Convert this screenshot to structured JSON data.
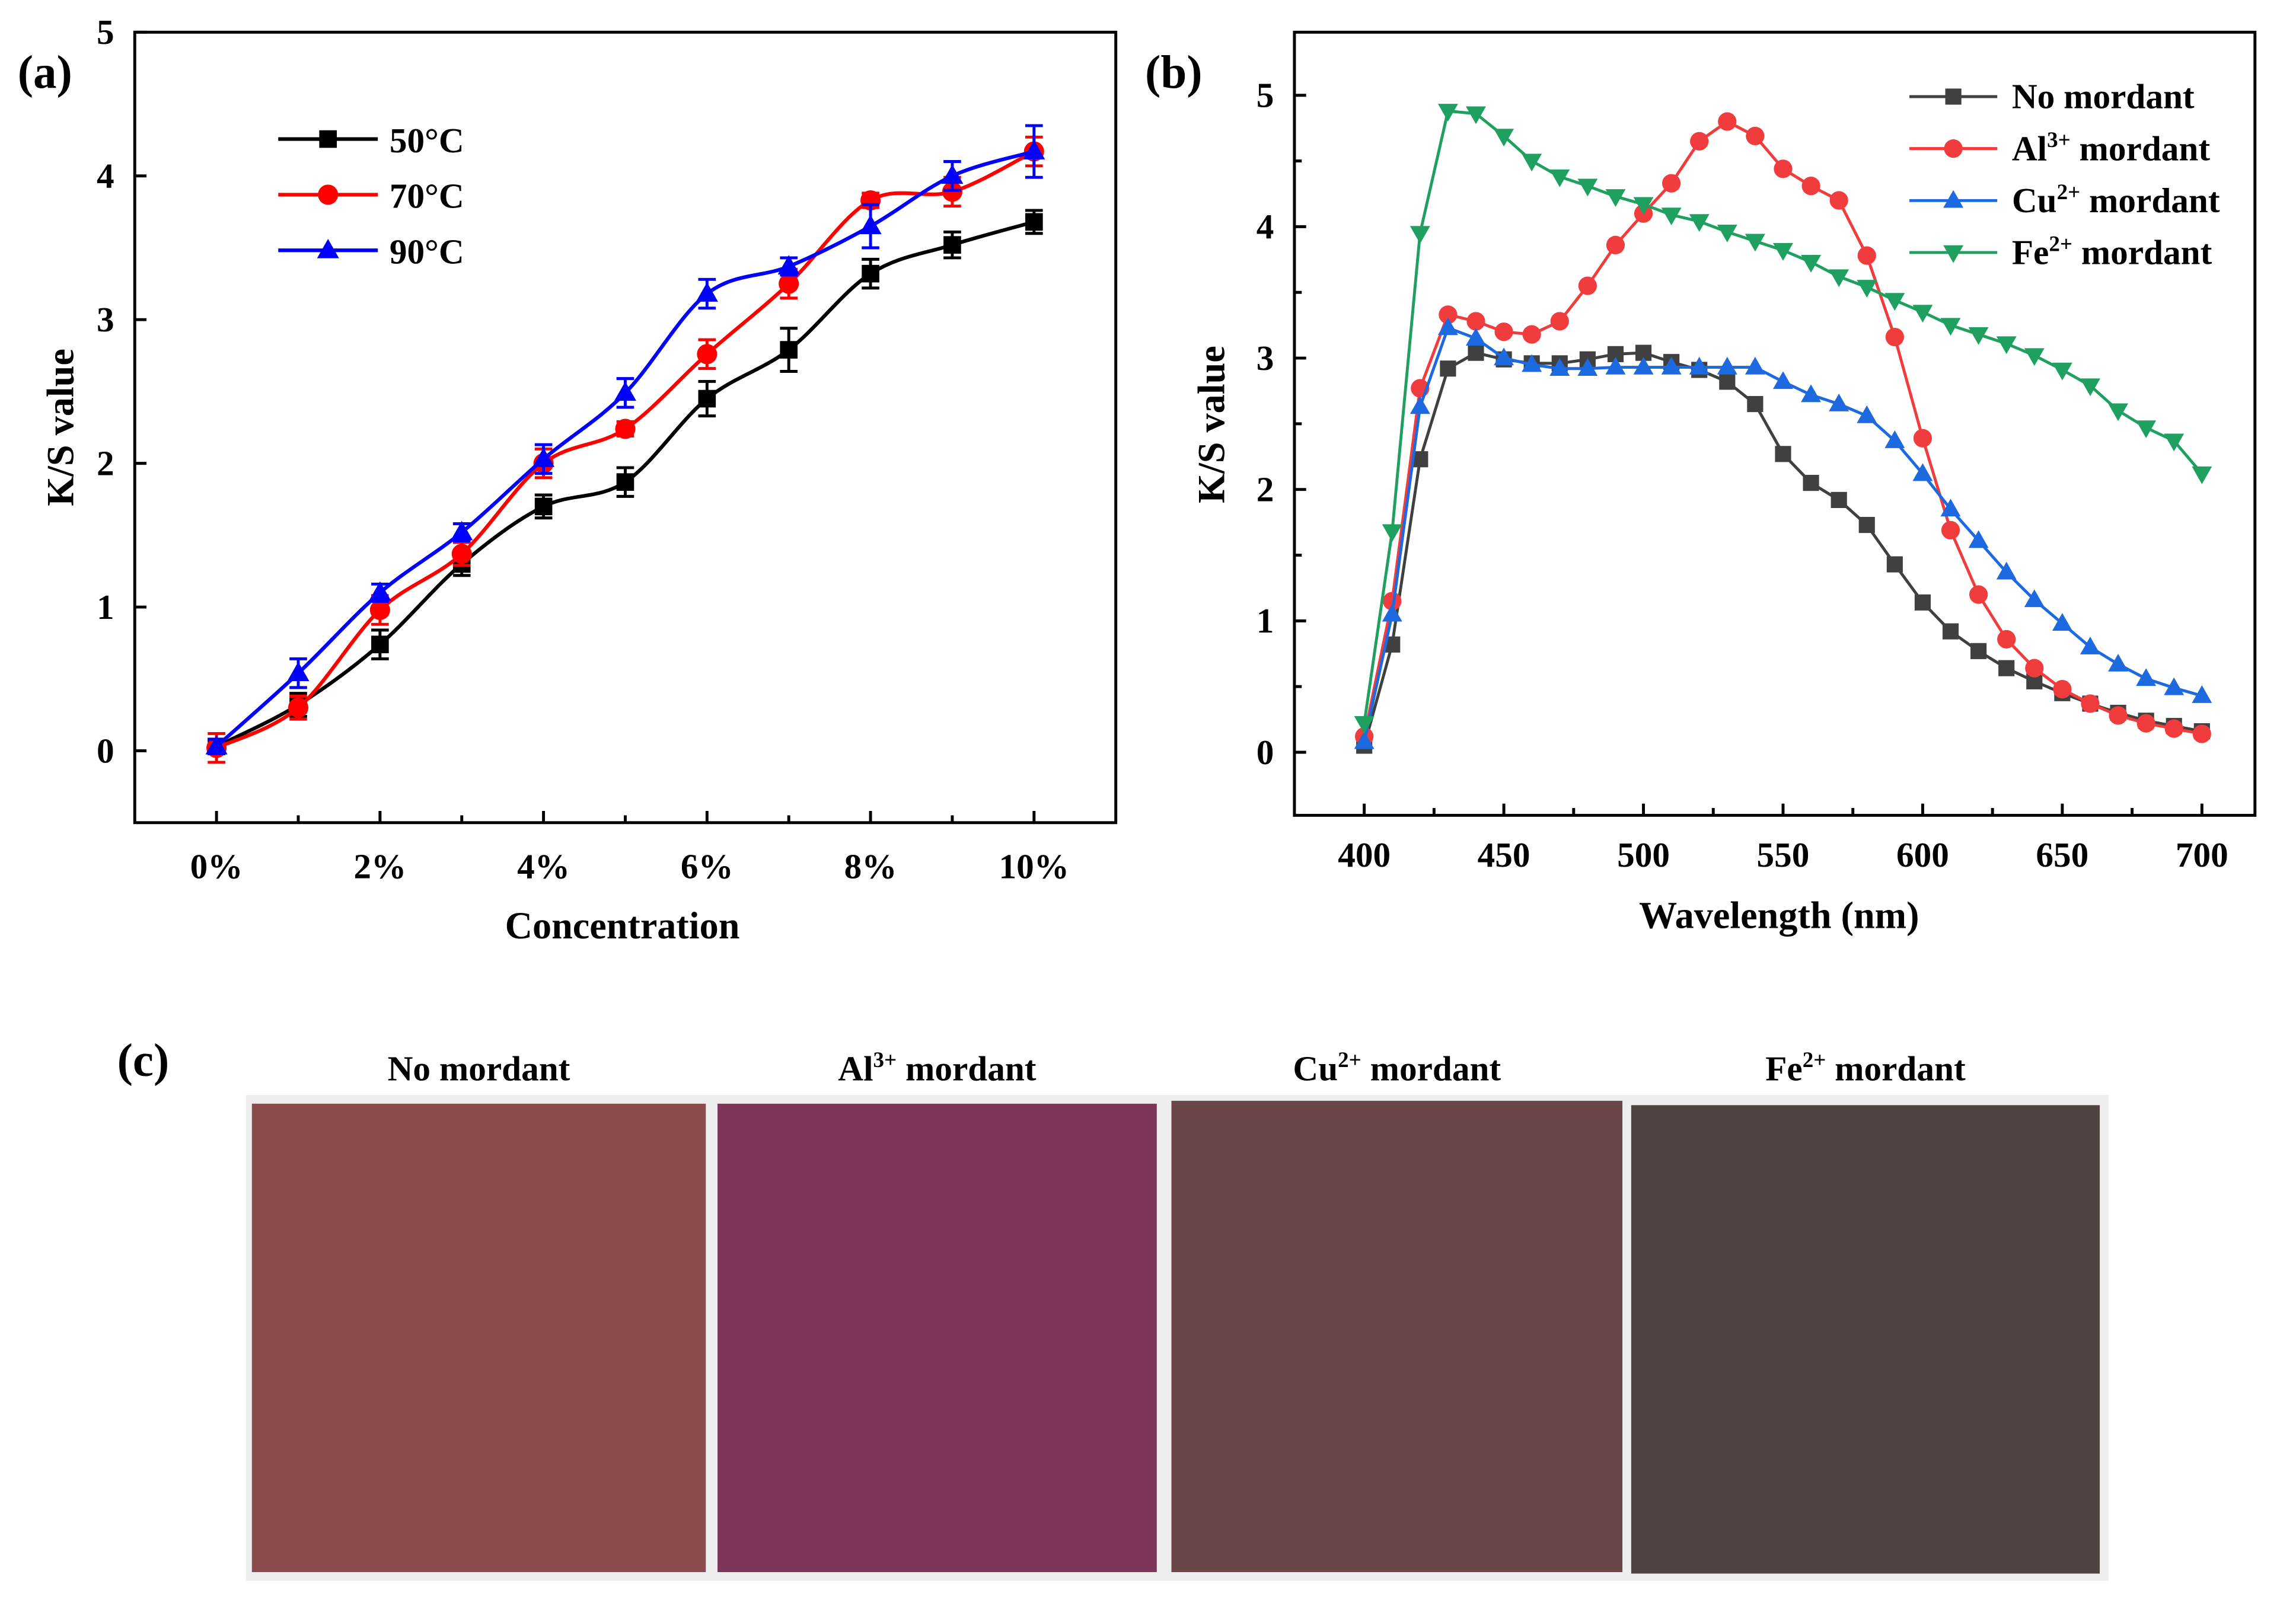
{
  "chart_data": [
    {
      "panel": "(a)",
      "type": "line",
      "xlabel": "Concentration",
      "ylabel": "K/S value",
      "categories": [
        "0%",
        "1%",
        "2%",
        "3%",
        "4%",
        "5%",
        "6%",
        "7%",
        "8%",
        "9%",
        "10%"
      ],
      "x_tick_labels": [
        "0%",
        "2%",
        "4%",
        "6%",
        "8%",
        "10%"
      ],
      "y_ticks": [
        0,
        1,
        2,
        3,
        4,
        5
      ],
      "ylim": [
        -0.5,
        5
      ],
      "legend_position": "top-left",
      "series": [
        {
          "name": "50°C",
          "color": "#000000",
          "marker": "square",
          "values": [
            0.03,
            0.32,
            0.74,
            1.3,
            1.7,
            1.87,
            2.45,
            2.79,
            3.32,
            3.52,
            3.68
          ],
          "error": [
            0.05,
            0.08,
            0.1,
            0.08,
            0.08,
            0.1,
            0.12,
            0.15,
            0.1,
            0.09,
            0.08
          ]
        },
        {
          "name": "70°C",
          "color": "#ff0000",
          "marker": "circle",
          "values": [
            0.02,
            0.3,
            0.98,
            1.37,
            2.0,
            2.24,
            2.76,
            3.25,
            3.83,
            3.89,
            4.17
          ],
          "error": [
            0.1,
            0.08,
            0.1,
            0.08,
            0.1,
            0.05,
            0.1,
            0.1,
            0.05,
            0.1,
            0.1
          ]
        },
        {
          "name": "90°C",
          "color": "#0000ff",
          "marker": "triangle",
          "values": [
            0.03,
            0.54,
            1.1,
            1.52,
            2.03,
            2.49,
            3.18,
            3.37,
            3.65,
            4.0,
            4.17
          ],
          "error": [
            0.05,
            0.1,
            0.06,
            0.06,
            0.1,
            0.1,
            0.1,
            0.06,
            0.15,
            0.1,
            0.18
          ]
        }
      ]
    },
    {
      "panel": "(b)",
      "type": "line",
      "xlabel": "Wavelength (nm)",
      "ylabel": "K/S value",
      "x": [
        400,
        410,
        420,
        430,
        440,
        450,
        460,
        470,
        480,
        490,
        500,
        510,
        520,
        530,
        540,
        550,
        560,
        570,
        580,
        590,
        600,
        610,
        620,
        630,
        640,
        650,
        660,
        670,
        680,
        690,
        700
      ],
      "x_ticks": [
        400,
        450,
        500,
        550,
        600,
        650,
        700
      ],
      "y_ticks": [
        0,
        1,
        2,
        3,
        4,
        5
      ],
      "xlim": [
        375,
        719
      ],
      "ylim": [
        -0.48,
        5.48
      ],
      "legend_position": "top-right",
      "series": [
        {
          "name": "No mordant",
          "name_main": "No mordant",
          "name_sup": "",
          "name_tail": "",
          "color": "#404040",
          "marker": "square",
          "values": [
            0.05,
            0.82,
            2.23,
            2.92,
            3.04,
            2.99,
            2.96,
            2.96,
            2.99,
            3.03,
            3.04,
            2.97,
            2.91,
            2.82,
            2.65,
            2.27,
            2.05,
            1.92,
            1.73,
            1.43,
            1.14,
            0.92,
            0.77,
            0.64,
            0.54,
            0.45,
            0.37,
            0.3,
            0.24,
            0.2,
            0.16
          ]
        },
        {
          "name": "Al3+ mordant",
          "name_main": "Al",
          "name_sup": "3+",
          "name_tail": " mordant",
          "color": "#f03c3c",
          "marker": "circle",
          "values": [
            0.12,
            1.15,
            2.77,
            3.33,
            3.28,
            3.2,
            3.18,
            3.28,
            3.55,
            3.86,
            4.1,
            4.33,
            4.65,
            4.8,
            4.69,
            4.44,
            4.31,
            4.2,
            3.78,
            3.16,
            2.39,
            1.69,
            1.2,
            0.86,
            0.64,
            0.48,
            0.37,
            0.28,
            0.22,
            0.18,
            0.14
          ]
        },
        {
          "name": "Cu2+ mordant",
          "name_main": "Cu",
          "name_sup": "2+",
          "name_tail": " mordant",
          "color": "#1d6ae0",
          "marker": "triangle",
          "values": [
            0.08,
            1.05,
            2.63,
            3.23,
            3.15,
            3.0,
            2.95,
            2.92,
            2.92,
            2.93,
            2.93,
            2.93,
            2.93,
            2.93,
            2.93,
            2.82,
            2.72,
            2.65,
            2.56,
            2.37,
            2.12,
            1.85,
            1.61,
            1.37,
            1.16,
            0.98,
            0.8,
            0.67,
            0.56,
            0.49,
            0.43
          ]
        },
        {
          "name": "Fe2+ mordant",
          "name_main": "Fe",
          "name_sup": "2+",
          "name_tail": " mordant",
          "color": "#20a060",
          "marker": "triangle-down",
          "values": [
            0.22,
            1.68,
            3.95,
            4.88,
            4.86,
            4.69,
            4.5,
            4.38,
            4.31,
            4.23,
            4.17,
            4.09,
            4.04,
            3.96,
            3.89,
            3.82,
            3.73,
            3.62,
            3.54,
            3.44,
            3.35,
            3.25,
            3.18,
            3.11,
            3.02,
            2.91,
            2.79,
            2.6,
            2.47,
            2.37,
            2.12
          ]
        }
      ]
    }
  ],
  "panel_c": {
    "label": "(c)",
    "swatches": [
      {
        "main": "No mordant",
        "sup": "",
        "tail": "",
        "color": "#8a4b4d"
      },
      {
        "main": "Al",
        "sup": "3+",
        "tail": " mordant",
        "color": "#7d3658"
      },
      {
        "main": "Cu",
        "sup": "2+",
        "tail": " mordant",
        "color": "#6a4648"
      },
      {
        "main": "Fe",
        "sup": "2+",
        "tail": " mordant",
        "color": "#4f4341"
      }
    ]
  }
}
